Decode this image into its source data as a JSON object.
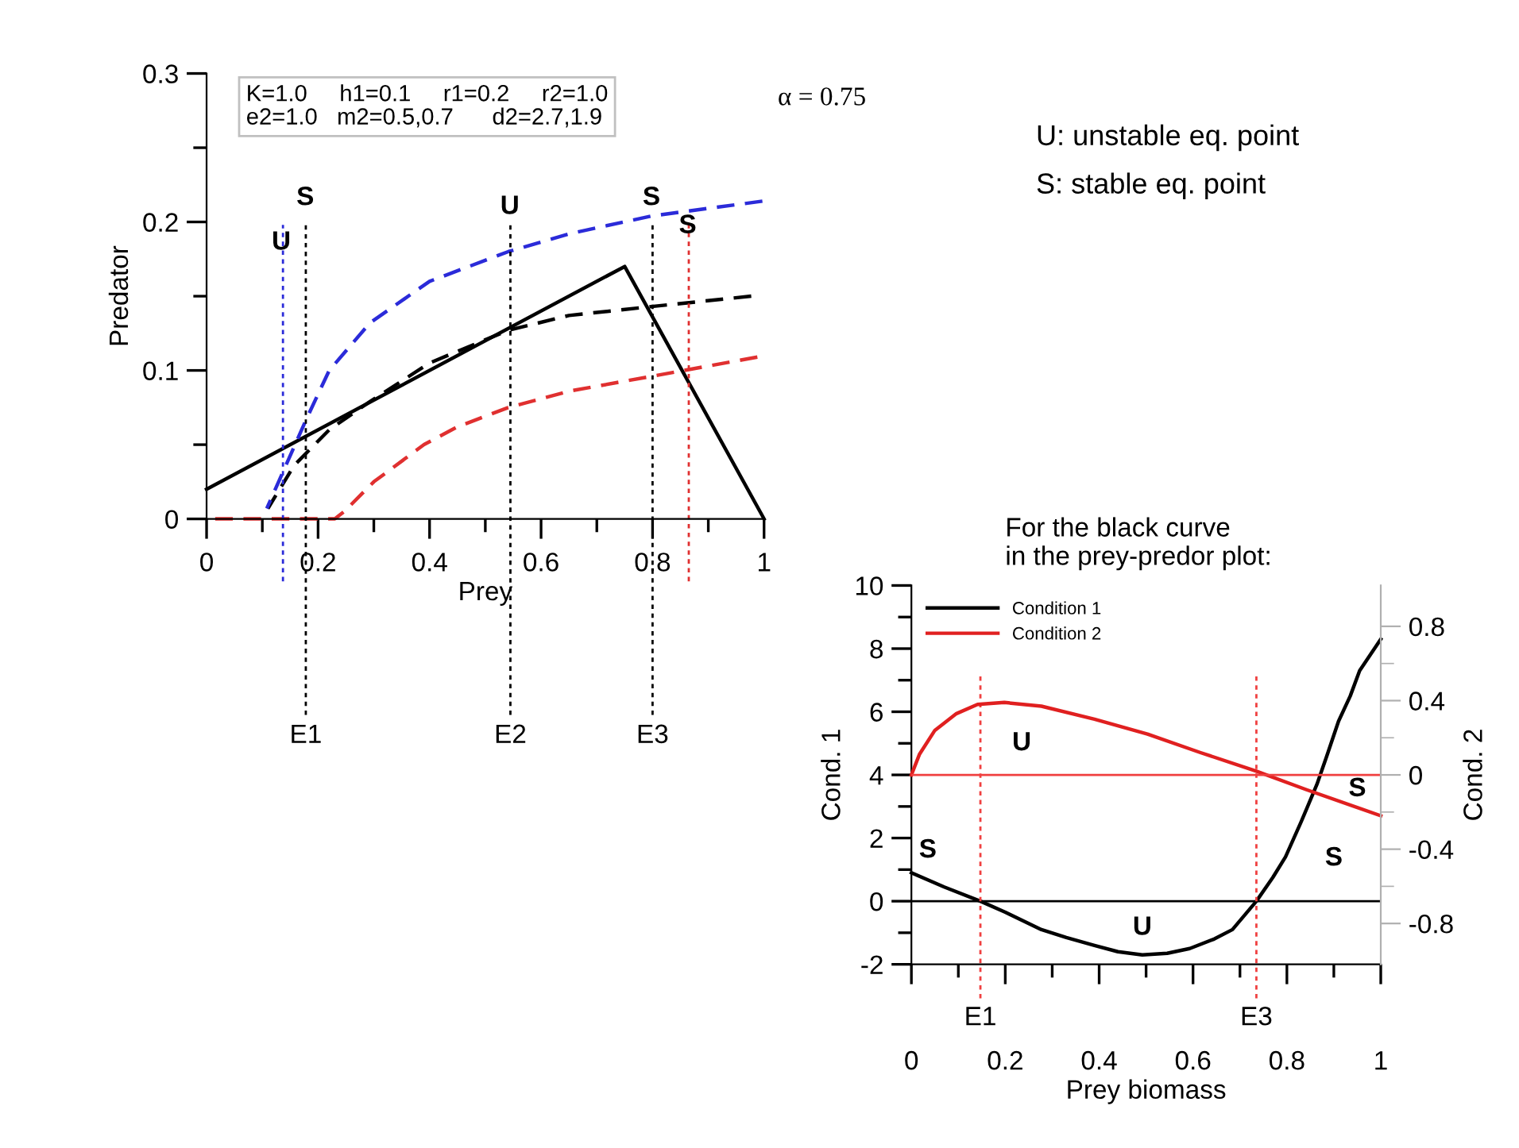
{
  "chart_data": [
    {
      "type": "line",
      "xlabel": "Prey",
      "ylabel": "Predator",
      "xlim": [
        0,
        1
      ],
      "ylim": [
        0,
        0.3
      ],
      "xticks": [
        0,
        {
          "value": 0.1,
          "label": null
        },
        0.2,
        {
          "value": 0.3,
          "label": null
        },
        0.4,
        {
          "value": 0.5,
          "label": null
        },
        0.6,
        {
          "value": 0.7,
          "label": null
        },
        0.8,
        {
          "value": 0.9,
          "label": null
        },
        1
      ],
      "yticks": [
        0,
        {
          "value": 0.05,
          "label": null
        },
        0.1,
        {
          "value": 0.15,
          "label": null
        },
        0.2,
        {
          "value": 0.25,
          "label": null
        },
        0.3
      ],
      "series": [
        {
          "color": "#000000",
          "line_style": "solid",
          "x": [
            0,
            0.75,
            1.0
          ],
          "values": [
            0.02,
            0.17,
            0
          ]
        },
        {
          "color": "#000000",
          "line_style": "dashed",
          "x": [
            0.11,
            0.157,
            0.22,
            0.293,
            0.4,
            0.541,
            0.65,
            0.798,
            0.977
          ],
          "values": [
            0.007,
            0.036,
            0.06,
            0.079,
            0.105,
            0.127,
            0.137,
            0.143,
            0.15
          ]
        },
        {
          "color": "#2b2bd9",
          "line_style": "dashed",
          "x": [
            0.108,
            0.18,
            0.22,
            0.293,
            0.4,
            0.541,
            0.65,
            0.798,
            0.997
          ],
          "values": [
            0.007,
            0.068,
            0.1,
            0.132,
            0.16,
            0.18,
            0.192,
            0.204,
            0.214
          ]
        },
        {
          "color": "#e03030",
          "line_style": "dashed",
          "x": [
            0,
            0.23,
            0.247,
            0.3,
            0.39,
            0.45,
            0.541,
            0.65,
            0.798,
            0.988
          ],
          "values": [
            0,
            0,
            0.005,
            0.025,
            0.05,
            0.062,
            0.075,
            0.086,
            0.096,
            0.109
          ]
        }
      ],
      "ref_lines": [
        {
          "axis": "x",
          "value": 0.137,
          "label": null,
          "color": "#2b2bd9",
          "line_style": "dotted"
        },
        {
          "axis": "x",
          "value": 0.178,
          "label": "E1",
          "color": "#000000",
          "line_style": "dotted"
        },
        {
          "axis": "x",
          "value": 0.545,
          "label": "E2",
          "color": "#000000",
          "line_style": "dotted"
        },
        {
          "axis": "x",
          "value": 0.8,
          "label": "E3",
          "color": "#000000",
          "line_style": "dotted"
        },
        {
          "axis": "x",
          "value": 0.865,
          "label": null,
          "color": "#e03030",
          "line_style": "dotted"
        }
      ],
      "annotations": [
        "K=1.0     h1=0.1     r1=0.2     r2=1.0\ne2=1.0   m2=0.5,0.7      d2=2.7,1.9",
        "α = 0.75",
        "U: unstable eq. point",
        "S: stable eq. point",
        "U",
        "S",
        "U",
        "S",
        "S"
      ]
    },
    {
      "type": "line",
      "title": "For the black curve\nin the prey-predor plot:",
      "xlabel": "Prey biomass",
      "ylabel": "Cond. 1",
      "y2label": "Cond. 2",
      "xlim": [
        0,
        1
      ],
      "ylim": [
        -2,
        10
      ],
      "y2lim": [
        -1.02,
        1.02
      ],
      "xticks": [
        0,
        {
          "value": 0.1,
          "label": null
        },
        0.2,
        {
          "value": 0.3,
          "label": null
        },
        0.4,
        {
          "value": 0.5,
          "label": null
        },
        0.6,
        {
          "value": 0.7,
          "label": null
        },
        0.8,
        {
          "value": 0.9,
          "label": null
        },
        1
      ],
      "yticks": [
        -2,
        {
          "value": -1,
          "label": null
        },
        0,
        {
          "value": 1,
          "label": null
        },
        2,
        {
          "value": 3,
          "label": null
        },
        4,
        {
          "value": 5,
          "label": null
        },
        6,
        {
          "value": 7,
          "label": null
        },
        8,
        {
          "value": 9,
          "label": null
        },
        10
      ],
      "y2ticks": [
        -0.8,
        {
          "value": -0.6,
          "label": null
        },
        -0.4,
        {
          "value": -0.2,
          "label": null
        },
        0,
        {
          "value": 0.2,
          "label": null
        },
        0.4,
        {
          "value": 0.6,
          "label": null
        },
        0.8
      ],
      "legend": "top left",
      "series": [
        {
          "name": "Condition 1",
          "color": "#000000",
          "line_style": "solid",
          "x": [
            0,
            0.07,
            0.147,
            0.2,
            0.277,
            0.33,
            0.39,
            0.44,
            0.492,
            0.545,
            0.593,
            0.645,
            0.684,
            0.735,
            0.77,
            0.797,
            0.83,
            0.864,
            0.885,
            0.91,
            0.935,
            0.955,
            1.0
          ],
          "values": [
            0.9,
            0.45,
            0,
            -0.35,
            -0.9,
            -1.15,
            -1.4,
            -1.6,
            -1.7,
            -1.65,
            -1.5,
            -1.2,
            -0.9,
            0,
            0.75,
            1.4,
            2.5,
            3.7,
            4.6,
            5.7,
            6.5,
            7.3,
            8.3
          ]
        },
        {
          "name": "Condition 2",
          "color": "#e02020",
          "line_style": "solid",
          "axis": "y2",
          "x": [
            0,
            0.017,
            0.05,
            0.096,
            0.141,
            0.198,
            0.277,
            0.39,
            0.503,
            0.616,
            0.735,
            0.842,
            1.0
          ],
          "values": [
            0,
            0.11,
            0.24,
            0.33,
            0.38,
            0.39,
            0.37,
            0.3,
            0.22,
            0.12,
            0.02,
            -0.08,
            -0.22
          ]
        }
      ],
      "ref_lines": [
        {
          "axis": "y",
          "value": 0,
          "label": null,
          "color": "#000000",
          "line_style": "solid"
        },
        {
          "axis": "y2",
          "value": 0,
          "label": null,
          "color": "#f04040",
          "line_style": "solid"
        },
        {
          "axis": "x",
          "value": 0.147,
          "label": "E1",
          "color": "#f04040",
          "line_style": "dotted"
        },
        {
          "axis": "x",
          "value": 0.735,
          "label": "E3",
          "color": "#f04040",
          "line_style": "dotted"
        }
      ],
      "annotations": [
        "S",
        "U",
        "U",
        "S",
        "S"
      ]
    }
  ]
}
